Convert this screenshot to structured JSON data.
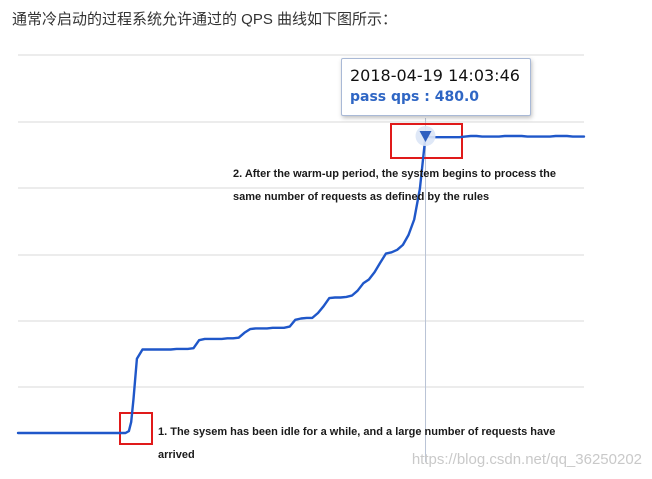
{
  "intro_text": "通常冷启动的过程系统允许通过的 QPS 曲线如下图所示：",
  "tooltip": {
    "datetime": "2018-04-19 14:03:46",
    "value_label": "pass qps : 480.0"
  },
  "annotations": {
    "warmup_done": "2. After the warm-up period, the system begins to process the same number of requests as defined by the rules",
    "idle": "1. The sysem has been idle for a while, and a large number of requests have arrived"
  },
  "watermark": "https://blog.csdn.net/qq_36250202",
  "colors": {
    "line": "#1f57c9",
    "grid": "#d9d9d9",
    "crosshair": "#b9c3d6",
    "highlight_box": "#e01a1a",
    "marker": "#2f5fbf"
  },
  "chart_data": {
    "type": "line",
    "title": "",
    "xlabel": "",
    "ylabel": "",
    "ylim": [
      0,
      520
    ],
    "xlim": [
      0,
      100
    ],
    "grid": "horizontal",
    "highlight_x": 72,
    "highlight_y": 480,
    "x": [
      0,
      3,
      6,
      9,
      12,
      15,
      18,
      19,
      19.6,
      20,
      20.4,
      21,
      22,
      23,
      24,
      25,
      26,
      27,
      28,
      29,
      30,
      31,
      32,
      33,
      34,
      35,
      36,
      37,
      38,
      39,
      40,
      41,
      42,
      43,
      44,
      45,
      46,
      47,
      48,
      49,
      50,
      51,
      52,
      53,
      54,
      55,
      56,
      57,
      58,
      59,
      60,
      61,
      62,
      63,
      64,
      65,
      66,
      67,
      68,
      69,
      70,
      71,
      72,
      73,
      74,
      75,
      76,
      77,
      78,
      79,
      80,
      81,
      82,
      83,
      84,
      85,
      86,
      87,
      88,
      89,
      90,
      91,
      92,
      93,
      94,
      95,
      96,
      97,
      98,
      99,
      100
    ],
    "y": [
      0,
      0,
      0,
      0,
      0,
      0,
      0,
      0,
      3,
      18,
      55,
      120,
      135,
      135,
      135,
      135,
      135,
      135,
      136,
      136,
      136,
      137,
      150,
      152,
      152,
      152,
      152,
      153,
      153,
      154,
      162,
      168,
      169,
      169,
      169,
      170,
      170,
      170,
      172,
      183,
      185,
      186,
      186,
      194,
      205,
      218,
      219,
      219,
      220,
      222,
      230,
      242,
      248,
      260,
      275,
      290,
      292,
      296,
      304,
      320,
      345,
      395,
      480,
      478,
      478,
      478,
      478,
      478,
      478,
      479,
      480,
      480,
      479,
      479,
      479,
      479,
      480,
      480,
      480,
      480,
      479,
      479,
      479,
      479,
      479,
      480,
      480,
      480,
      479,
      479,
      479
    ]
  }
}
